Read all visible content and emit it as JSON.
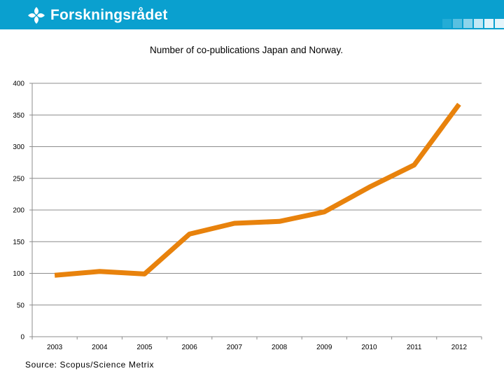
{
  "header": {
    "brand": "Forskningsrådet",
    "colors": {
      "bar": "#0aa0cf",
      "squares": [
        "#23acd6",
        "#58c0e1",
        "#8dd4eb",
        "#c2e8f5",
        "#e4f4fa"
      ]
    }
  },
  "chart_data": {
    "type": "line",
    "title": "Number of co-publications Japan and Norway.",
    "xlabel": "",
    "ylabel": "",
    "categories": [
      "2003",
      "2004",
      "2005",
      "2006",
      "2007",
      "2008",
      "2009",
      "2010",
      "2011",
      "2012"
    ],
    "series": [
      {
        "name": "Co-publications",
        "values": [
          97,
          103,
          99,
          162,
          179,
          182,
          197,
          236,
          271,
          367
        ],
        "color": "#e8820c"
      }
    ],
    "ylim": [
      0,
      400
    ],
    "yticks": [
      "0",
      "50",
      "100",
      "150",
      "200",
      "250",
      "300",
      "350",
      "400"
    ],
    "grid": true,
    "source": "Source: Scopus/Science Metrix"
  }
}
